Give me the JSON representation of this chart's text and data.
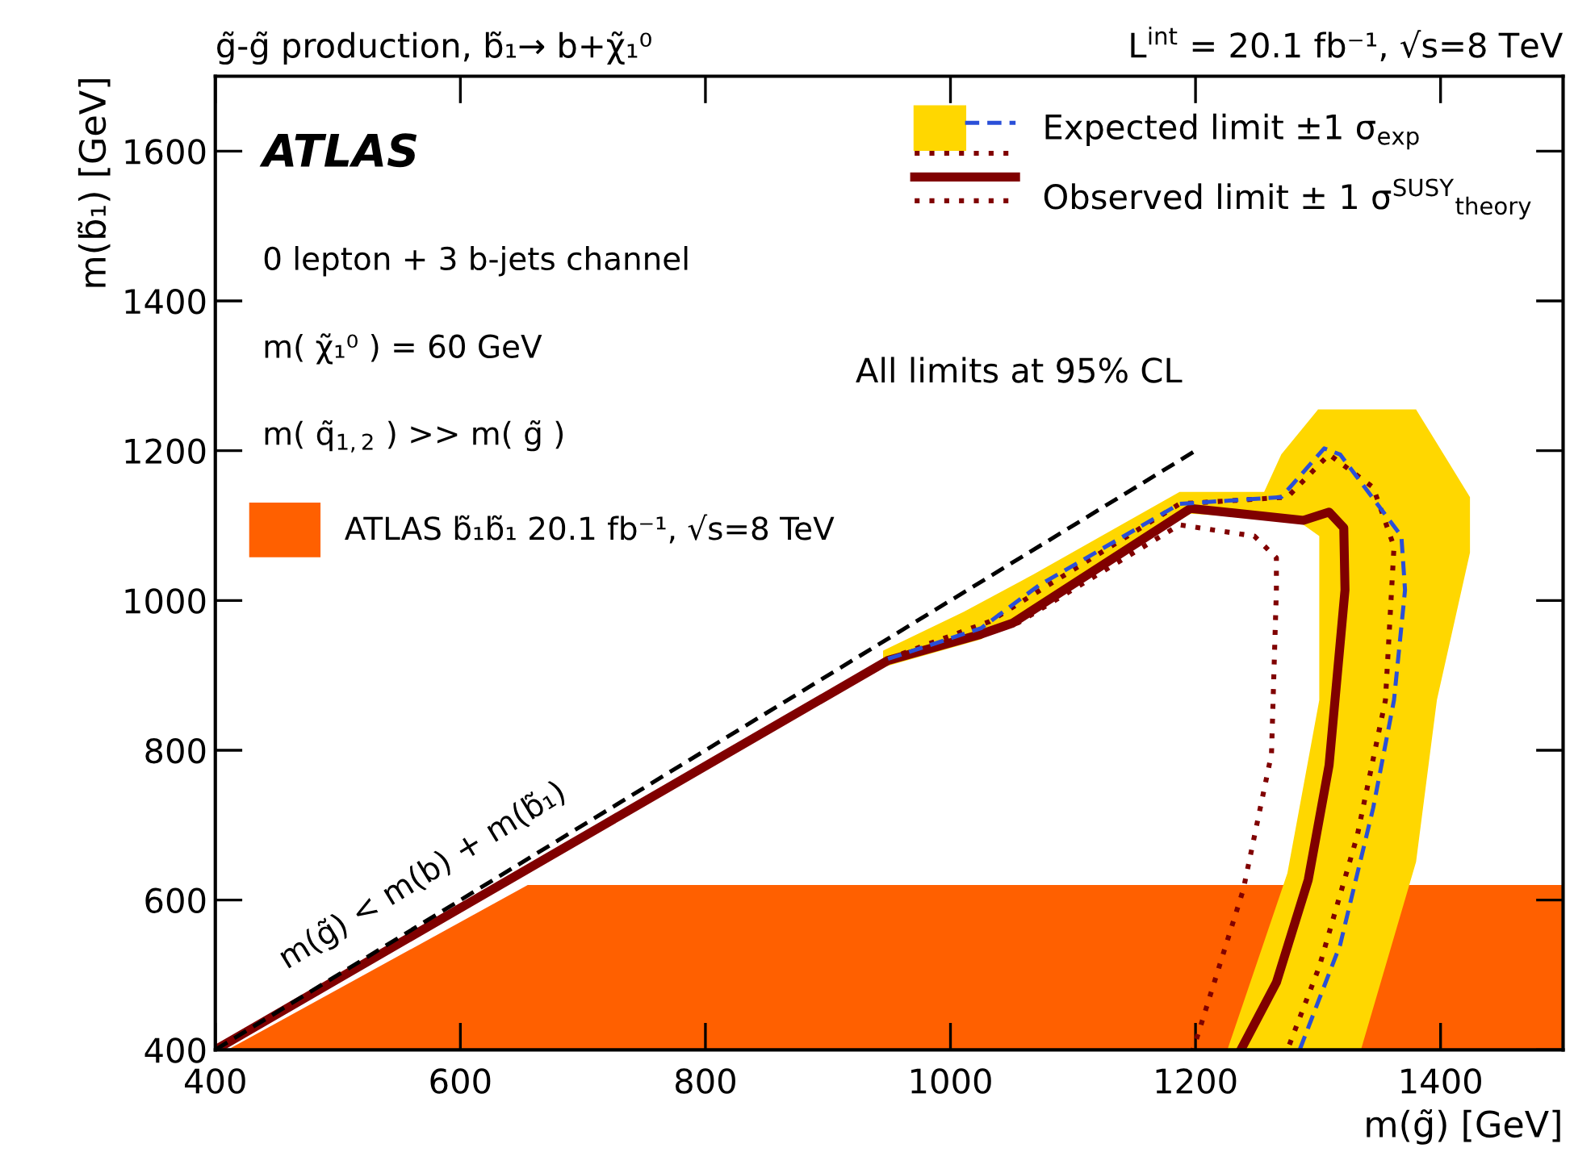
{
  "chart_data": {
    "type": "line",
    "title": "g̃-g̃ production, b̃₁→ b+χ̃₁⁰",
    "subtitle": "L$^{int}$ = 20.1 fb⁻¹, √s=8 TeV",
    "xlabel": "m(g̃) [GeV]",
    "ylabel": "m(b̃₁) [GeV]",
    "xlim": [
      400,
      1500
    ],
    "ylim": [
      400,
      1700
    ],
    "xticks": [
      400,
      600,
      800,
      1000,
      1200,
      1400
    ],
    "yticks": [
      400,
      600,
      800,
      1000,
      1200,
      1400,
      1600
    ],
    "grid": false,
    "legend": "top right",
    "series": [
      {
        "type": "area",
        "name": "ATLAS b̃₁b̃₁ 20.1 fb⁻¹, √s=8 TeV",
        "color": "#ff6000",
        "x": [
          410,
          655,
          1500
        ],
        "values": [
          400,
          620,
          620
        ]
      },
      {
        "type": "area",
        "color": "#ffd700",
        "x": [
          945,
          1011,
          1068,
          1187,
          1256,
          1270,
          1300,
          1380,
          1424,
          1424,
          1397,
          1380,
          1335,
          1226,
          1275,
          1301,
          1301,
          1283,
          1196,
          1068,
          1025,
          945
        ],
        "values": [
          933,
          985,
          1035,
          1145,
          1145,
          1195,
          1255,
          1255,
          1138,
          1064,
          867,
          651,
          400,
          400,
          636,
          867,
          1086,
          1107,
          1116,
          992,
          948,
          911
        ]
      },
      {
        "type": "line",
        "line_style": "dotted",
        "color": "#800000",
        "x": [
          949,
          1055,
          1187,
          1248,
          1266,
          1266,
          1262,
          1239,
          1204,
          1198
        ],
        "values": [
          920,
          970,
          1101,
          1086,
          1057,
          1014,
          795,
          614,
          431,
          400
        ]
      },
      {
        "type": "line",
        "line_style": "dotted",
        "color": "#800000",
        "x": [
          949,
          1032,
          1187,
          1275,
          1309,
          1345,
          1362,
          1355,
          1332,
          1301,
          1275
        ],
        "values": [
          922,
          972,
          1129,
          1138,
          1195,
          1151,
          1072,
          867,
          686,
          511,
          400
        ]
      },
      {
        "type": "line",
        "name": "Expected limit ±1 σ$_{exp}$",
        "line_style": "dashed",
        "color": "#2a4fd8",
        "x": [
          949,
          1025,
          1072,
          1187,
          1270,
          1305,
          1318,
          1368,
          1371,
          1362,
          1345,
          1318,
          1301,
          1285
        ],
        "values": [
          922,
          963,
          1020,
          1129,
          1138,
          1203,
          1195,
          1086,
          1014,
          867,
          723,
          540,
          468,
          400
        ]
      },
      {
        "type": "line",
        "name": "Observed limit ± 1 σ$^{SUSY}$$_{theory}$",
        "line_style": "solid",
        "color": "#800000",
        "x": [
          400,
          949,
          1025,
          1051,
          1196,
          1288,
          1309,
          1321,
          1322,
          1309,
          1292,
          1266,
          1237
        ],
        "values": [
          400,
          920,
          955,
          970,
          1123,
          1107,
          1118,
          1097,
          1014,
          780,
          627,
          490,
          400
        ]
      },
      {
        "type": "line",
        "line_style": "dashed",
        "color": "#000000",
        "x": [
          400,
          1200
        ],
        "values": [
          400,
          1200
        ]
      }
    ],
    "annotations": [
      "ATLAS",
      "0 lepton + 3 b-jets channel",
      "m( χ̃₁⁰ ) = 60 GeV",
      "m( q̃$_{1,2}$ ) >> m( g̃ )",
      "All limits at 95% CL",
      "m(g̃) < m(b) + m(b̃₁)"
    ]
  }
}
